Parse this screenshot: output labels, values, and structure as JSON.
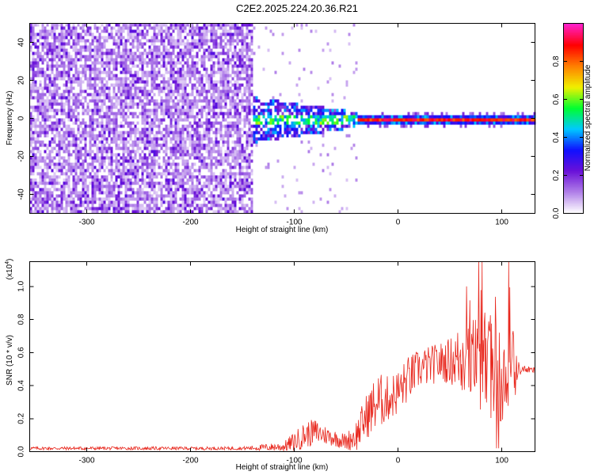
{
  "title": "C2E2.2025.224.20.36.R21",
  "chart_data": [
    {
      "type": "heatmap",
      "xlabel": "Height of straight line (km)",
      "ylabel": "Frequency (Hz)",
      "xlim": [
        -355,
        132
      ],
      "ylim": [
        -50,
        50
      ],
      "xticks": [
        -300,
        -200,
        -100,
        0,
        100
      ],
      "yticks": [
        -40,
        -20,
        0,
        20,
        40
      ],
      "colorbar": {
        "label": "Normalized spectral amplitude",
        "range": [
          0,
          1
        ],
        "ticks": [
          "0.0",
          "0.2",
          "0.4",
          "0.6",
          "0.8"
        ],
        "tick_values": [
          0.0,
          0.2,
          0.4,
          0.6,
          0.8
        ],
        "colors": [
          "#ffffff",
          "#b07fe8",
          "#6a10d8",
          "#1010ff",
          "#00c8ff",
          "#00ff30",
          "#f0f000",
          "#ff8000",
          "#ff0000",
          "#ff20c8"
        ]
      },
      "regions": [
        {
          "x_range": [
            -355,
            -140
          ],
          "freq_range": [
            -50,
            50
          ],
          "description_level": 0.12
        },
        {
          "x_range": [
            -140,
            -40
          ],
          "freq_range": [
            -10,
            10
          ],
          "description_level": 0.3
        },
        {
          "x_range": [
            -40,
            132
          ],
          "freq_range": [
            -1,
            1
          ],
          "description_level": 0.85
        }
      ],
      "grid": false
    },
    {
      "type": "line",
      "xlabel": "Height of straight line (km)",
      "ylabel": "SNR (10 * v/v)",
      "yscale_label": "(x10",
      "yscale_exp": "4",
      "xlim": [
        -355,
        132
      ],
      "ylim": [
        0,
        1.15
      ],
      "xticks": [
        -300,
        -200,
        -100,
        0,
        100
      ],
      "yticks": [
        "0.0",
        "0.2",
        "0.4",
        "0.6",
        "0.8",
        "1.0"
      ],
      "ytick_values": [
        0.0,
        0.2,
        0.4,
        0.6,
        0.8,
        1.0
      ],
      "series": [
        {
          "color": "#e8281e",
          "x": [
            -355,
            -300,
            -250,
            -200,
            -150,
            -110,
            -100,
            -90,
            -80,
            -70,
            -60,
            -50,
            -40,
            -30,
            -20,
            -10,
            0,
            10,
            20,
            30,
            40,
            50,
            60,
            70,
            80,
            90,
            100,
            110,
            115,
            120,
            132
          ],
          "y": [
            0.02,
            0.02,
            0.02,
            0.02,
            0.02,
            0.03,
            0.06,
            0.1,
            0.12,
            0.1,
            0.08,
            0.06,
            0.1,
            0.22,
            0.3,
            0.32,
            0.36,
            0.44,
            0.5,
            0.52,
            0.54,
            0.55,
            0.56,
            0.54,
            0.55,
            0.52,
            0.5,
            0.48,
            0.5,
            0.5,
            0.49
          ],
          "noise": [
            0.01,
            0.01,
            0.01,
            0.01,
            0.01,
            0.03,
            0.06,
            0.08,
            0.08,
            0.06,
            0.05,
            0.05,
            0.1,
            0.14,
            0.18,
            0.14,
            0.14,
            0.14,
            0.12,
            0.12,
            0.12,
            0.14,
            0.22,
            0.28,
            0.3,
            0.32,
            0.32,
            0.3,
            0.06,
            0.02,
            0.02
          ]
        }
      ],
      "grid": false
    }
  ]
}
